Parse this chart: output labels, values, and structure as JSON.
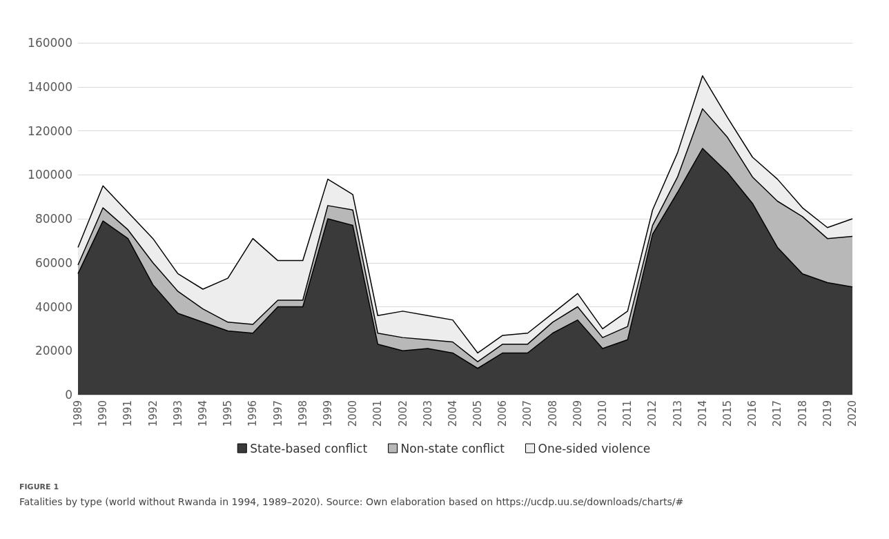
{
  "chart_data": {
    "type": "area",
    "stacked": true,
    "categories": [
      "1989",
      "1990",
      "1991",
      "1992",
      "1993",
      "1994",
      "1995",
      "1996",
      "1997",
      "1998",
      "1999",
      "2000",
      "2001",
      "2002",
      "2003",
      "2004",
      "2005",
      "2006",
      "2007",
      "2008",
      "2009",
      "2010",
      "2011",
      "2012",
      "2013",
      "2014",
      "2015",
      "2016",
      "2017",
      "2018",
      "2019",
      "2020"
    ],
    "series": [
      {
        "name": "State-based conflict",
        "color": "#3a3a3a",
        "values": [
          55000,
          79000,
          71000,
          50000,
          37000,
          33000,
          29000,
          28000,
          40000,
          40000,
          80000,
          77000,
          23000,
          20000,
          21000,
          19000,
          12000,
          19000,
          19000,
          28000,
          34000,
          21000,
          25000,
          73000,
          92000,
          112000,
          101000,
          87000,
          67000,
          55000,
          51000,
          49000
        ]
      },
      {
        "name": "Non-state conflict",
        "color": "#b8b8b8",
        "values": [
          4000,
          6000,
          4000,
          10000,
          10000,
          6000,
          4000,
          4000,
          3000,
          3000,
          6000,
          7000,
          5000,
          6000,
          4000,
          5000,
          3000,
          4000,
          4000,
          5000,
          6000,
          5000,
          6000,
          4000,
          7000,
          18000,
          16000,
          12000,
          21000,
          26000,
          20000,
          23000
        ]
      },
      {
        "name": "One-sided violence",
        "color": "#ededed",
        "values": [
          8000,
          10000,
          8000,
          11000,
          8000,
          9000,
          20000,
          39000,
          18000,
          18000,
          12000,
          7000,
          8000,
          12000,
          11000,
          10000,
          4000,
          4000,
          5000,
          4000,
          6000,
          4000,
          7000,
          7000,
          11000,
          15000,
          9000,
          9000,
          10000,
          4000,
          5000,
          8000
        ]
      }
    ],
    "ylim": [
      0,
      160000
    ],
    "yticks": [
      0,
      20000,
      40000,
      60000,
      80000,
      100000,
      120000,
      140000,
      160000
    ],
    "grid": "y",
    "legend": "bottom",
    "annotations": [
      "FIGURE 1",
      "Fatalities by type (world without Rwanda in 1994, 1989–2020). Source: Own elaboration based on https://ucdp.uu.se/downloads/charts/#"
    ]
  }
}
